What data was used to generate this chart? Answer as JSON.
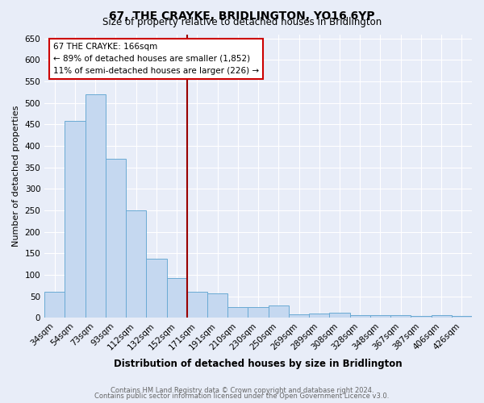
{
  "title": "67, THE CRAYKE, BRIDLINGTON, YO16 6YP",
  "subtitle": "Size of property relative to detached houses in Bridlington",
  "xlabel": "Distribution of detached houses by size in Bridlington",
  "ylabel": "Number of detached properties",
  "categories": [
    "34sqm",
    "54sqm",
    "73sqm",
    "93sqm",
    "112sqm",
    "132sqm",
    "152sqm",
    "171sqm",
    "191sqm",
    "210sqm",
    "230sqm",
    "250sqm",
    "269sqm",
    "289sqm",
    "308sqm",
    "328sqm",
    "348sqm",
    "367sqm",
    "387sqm",
    "406sqm",
    "426sqm"
  ],
  "values": [
    60,
    458,
    520,
    370,
    250,
    138,
    93,
    60,
    57,
    26,
    26,
    29,
    9,
    11,
    12,
    6,
    7,
    6,
    4,
    7,
    5
  ],
  "bar_color": "#c5d8f0",
  "bar_edge_color": "#6aaad4",
  "background_color": "#e8edf8",
  "grid_color": "#ffffff",
  "property_line_index": 7,
  "property_line_color": "#990000",
  "annotation_text": "67 THE CRAYKE: 166sqm\n← 89% of detached houses are smaller (1,852)\n11% of semi-detached houses are larger (226) →",
  "annotation_box_facecolor": "#ffffff",
  "annotation_box_edgecolor": "#cc0000",
  "footer_line1": "Contains HM Land Registry data © Crown copyright and database right 2024.",
  "footer_line2": "Contains public sector information licensed under the Open Government Licence v3.0.",
  "ylim": [
    0,
    660
  ],
  "yticks": [
    0,
    50,
    100,
    150,
    200,
    250,
    300,
    350,
    400,
    450,
    500,
    550,
    600,
    650
  ],
  "title_fontsize": 10,
  "subtitle_fontsize": 8.5,
  "xlabel_fontsize": 8.5,
  "ylabel_fontsize": 8,
  "tick_fontsize": 7.5,
  "annotation_fontsize": 7.5,
  "footer_fontsize": 6.0,
  "footer_color": "#666666"
}
